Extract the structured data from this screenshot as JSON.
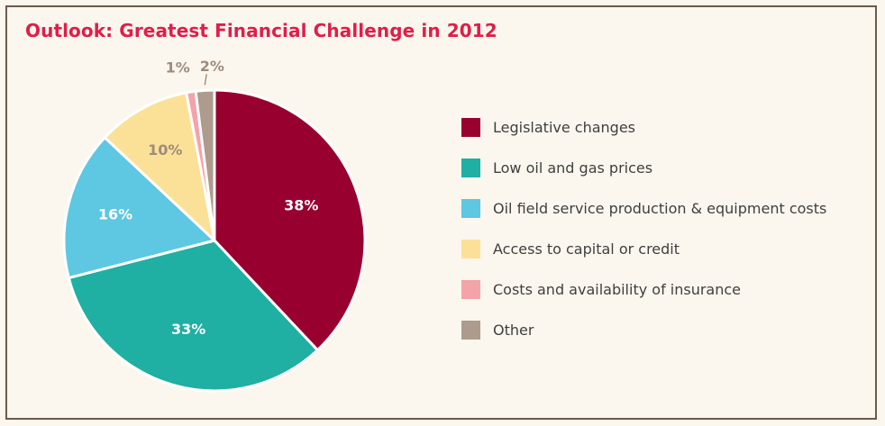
{
  "chart_data": {
    "type": "pie",
    "title": "Outlook: Greatest Financial Challenge in 2012",
    "slices": [
      {
        "label": "Legislative changes",
        "value": 38,
        "display": "38%",
        "color": "#980030",
        "label_color": "#ffffff"
      },
      {
        "label": "Low oil and gas prices",
        "value": 33,
        "display": "33%",
        "color": "#1fafa3",
        "label_color": "#ffffff"
      },
      {
        "label": "Oil field service production & equipment costs",
        "value": 16,
        "display": "16%",
        "color": "#5ec7e2",
        "label_color": "#ffffff"
      },
      {
        "label": "Access to capital or credit",
        "value": 10,
        "display": "10%",
        "color": "#fbe197",
        "label_color": "#9e8c7c"
      },
      {
        "label": "Costs and availability of insurance",
        "value": 1,
        "display": "1%",
        "color": "#f4a3a8",
        "label_color": "#9e8c7c"
      },
      {
        "label": "Other",
        "value": 2,
        "display": "2%",
        "color": "#ad9b8d",
        "label_color": "#9e8c7c"
      }
    ],
    "legend_position": "right"
  }
}
